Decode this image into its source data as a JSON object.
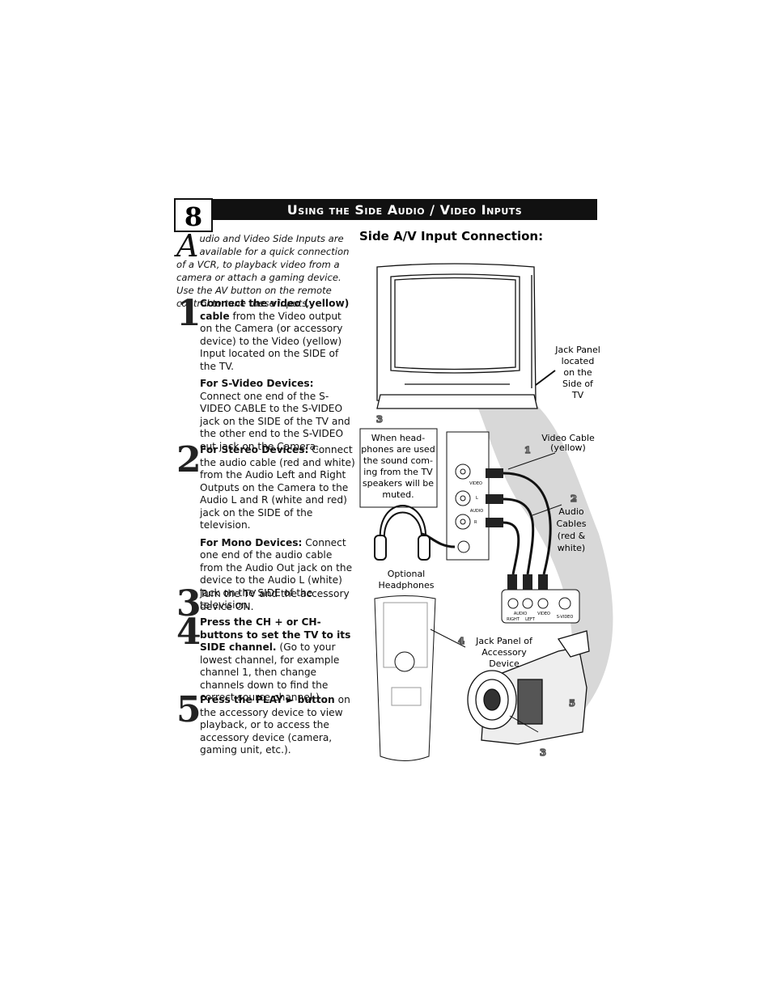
{
  "page_number": "8",
  "header": {
    "title": "Using the Side Audio / Video Inputs"
  },
  "intro": {
    "drop_cap": "A",
    "text": "udio and Video Side Inputs are available for a quick connection of a VCR, to playback video from a camera or attach a gaming device. Use the AV button on the remote control to tune these inputs."
  },
  "steps": [
    {
      "number": "1",
      "paragraphs": [
        {
          "bold": "Connect the video (yellow) cable",
          "text": " from the Video output on the Camera (or accessory device) to the Video (yellow) Input located on the SIDE of the TV."
        },
        {
          "bold": "For S-Video Devices:",
          "text": " Connect one end of the S-VIDEO CABLE to the S-VIDEO jack on the SIDE of the TV and the other end to the S-VIDEO out jack on the Camera."
        }
      ]
    },
    {
      "number": "2",
      "paragraphs": [
        {
          "bold": "For Stereo Devices:",
          "text": " Connect the audio cable (red and white) from the Audio Left and Right Outputs on the Camera to the Audio L and R (white and red) jack on the SIDE of the television."
        },
        {
          "bold": "For Mono Devices:",
          "text": " Connect one end of the audio cable from the Audio Out jack on the device to the Audio L (white) jack on the SIDE of the television."
        }
      ]
    },
    {
      "number": "3",
      "paragraphs": [
        {
          "bold": "",
          "text": "Turn the TV and the accessory device ON."
        }
      ]
    },
    {
      "number": "4",
      "paragraphs": [
        {
          "bold": "Press the CH + or CH- buttons to set the TV to its SIDE channel.",
          "text": " (Go to your lowest channel, for example channel 1, then change channels down to find the correct source channel.)"
        }
      ]
    },
    {
      "number": "5",
      "paragraphs": [
        {
          "bold": "Press the PLAY ► button",
          "text": " on the accessory device to view playback, or to access the accessory device (camera, gaming unit, etc.)."
        }
      ]
    }
  ],
  "figure": {
    "heading": "Side A/V Input Connection:",
    "jack_panel_tv": [
      "Jack Panel",
      "located",
      "on the",
      "Side of",
      "TV"
    ],
    "video_cable": [
      "Video Cable",
      "(yellow)"
    ],
    "audio_cables": [
      "Audio",
      "Cables",
      "(red &",
      "white)"
    ],
    "headphone_note": [
      "When head-",
      "phones are used",
      "the sound com-",
      "ing from the TV",
      "speakers will be",
      "muted."
    ],
    "headphones": [
      "Optional",
      "Headphones"
    ],
    "jack_panel_device": [
      "Jack Panel of",
      "Accessory",
      "Device"
    ],
    "tv_jacks": {
      "video": "VIDEO",
      "left": "L",
      "audio": "AUDIO",
      "right": "R"
    },
    "device_jacks": {
      "audio": "AUDIO",
      "right": "RIGHT",
      "left": "LEFT",
      "video": "VIDEO",
      "svideo": "S-VIDEO"
    },
    "callouts": [
      "3",
      "1",
      "2",
      "4",
      "5",
      "3"
    ]
  }
}
